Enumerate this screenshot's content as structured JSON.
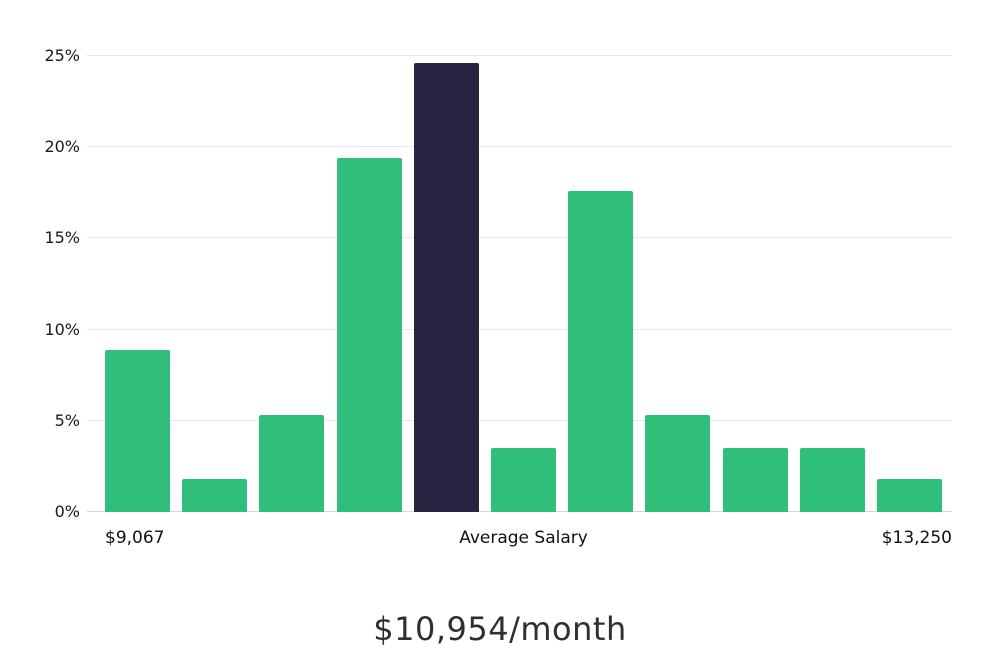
{
  "chart_data": {
    "type": "bar",
    "title": "$10,954/month",
    "values": [
      8.9,
      1.8,
      5.3,
      19.4,
      24.6,
      3.5,
      17.6,
      5.3,
      3.5,
      3.5,
      1.8
    ],
    "highlight_index": 4,
    "bar_color": "#2fbf7b",
    "highlight_color": "#272442",
    "ylim": [
      0,
      25
    ],
    "y_tick_values": [
      0,
      5,
      10,
      15,
      20,
      25
    ],
    "y_tick_labels": [
      "0%",
      "5%",
      "10%",
      "15%",
      "20%",
      "25%"
    ],
    "x_axis_labels": {
      "left": "$9,067",
      "center": "Average Salary",
      "right": "$13,250"
    },
    "grid": true,
    "legend": "none"
  }
}
